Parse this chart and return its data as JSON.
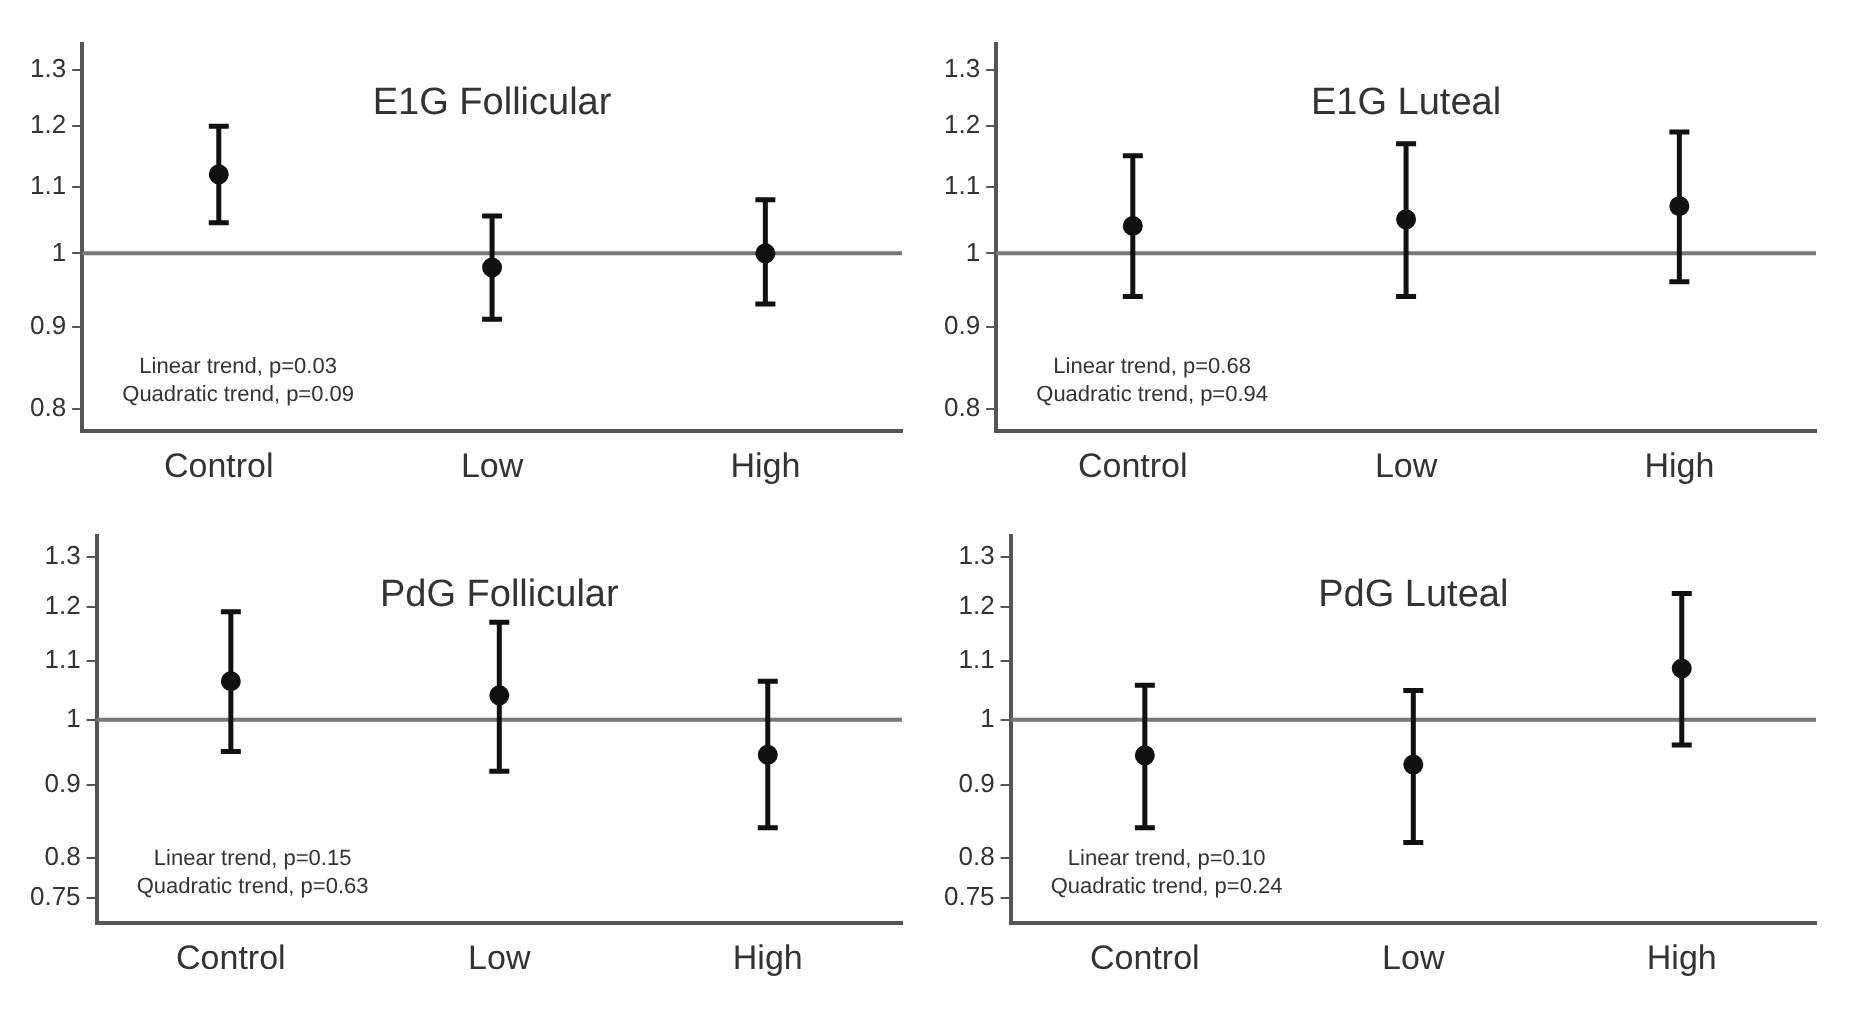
{
  "chart_data": [
    {
      "type": "scatter",
      "title": "E1G Follicular",
      "categories": [
        "Control",
        "Low",
        "High"
      ],
      "values": [
        1.12,
        0.98,
        1.0
      ],
      "errors": [
        [
          1.045,
          1.2
        ],
        [
          0.91,
          1.055
        ],
        [
          0.93,
          1.08
        ]
      ],
      "color": "#111111",
      "marker": "circle",
      "log": "y",
      "ylim": [
        0.775,
        1.35
      ],
      "yticks": [
        0.8,
        0.9,
        1,
        1.1,
        1.2,
        1.3
      ],
      "ref_lines": [
        {
          "axis": "y",
          "value": 1,
          "color": "#777777"
        }
      ],
      "annotations": [
        "Linear trend, p=0.03",
        "Quadratic trend, p=0.09"
      ]
    },
    {
      "type": "scatter",
      "title": "E1G Luteal",
      "categories": [
        "Control",
        "Low",
        "High"
      ],
      "values": [
        1.04,
        1.05,
        1.07
      ],
      "errors": [
        [
          0.94,
          1.15
        ],
        [
          0.94,
          1.17
        ],
        [
          0.96,
          1.19
        ]
      ],
      "color": "#111111",
      "marker": "circle",
      "log": "y",
      "ylim": [
        0.775,
        1.35
      ],
      "yticks": [
        0.8,
        0.9,
        1,
        1.1,
        1.2,
        1.3
      ],
      "ref_lines": [
        {
          "axis": "y",
          "value": 1,
          "color": "#777777"
        }
      ],
      "annotations": [
        "Linear trend, p=0.68",
        "Quadratic trend, p=0.94"
      ]
    },
    {
      "type": "scatter",
      "title": "PdG Follicular",
      "categories": [
        "Control",
        "Low",
        "High"
      ],
      "values": [
        1.064,
        1.04,
        0.945
      ],
      "errors": [
        [
          0.95,
          1.19
        ],
        [
          0.92,
          1.17
        ],
        [
          0.84,
          1.064
        ]
      ],
      "color": "#111111",
      "marker": "circle",
      "log": "y",
      "ylim": [
        0.72,
        1.345
      ],
      "yticks": [
        0.75,
        0.8,
        0.9,
        1,
        1.1,
        1.2,
        1.3
      ],
      "ref_lines": [
        {
          "axis": "y",
          "value": 1,
          "color": "#777777"
        }
      ],
      "annotations": [
        "Linear trend, p=0.15",
        "Quadratic trend, p=0.63"
      ]
    },
    {
      "type": "scatter",
      "title": "PdG Luteal",
      "categories": [
        "Control",
        "Low",
        "High"
      ],
      "values": [
        0.944,
        0.93,
        1.086
      ],
      "errors": [
        [
          0.84,
          1.057
        ],
        [
          0.82,
          1.048
        ],
        [
          0.96,
          1.226
        ]
      ],
      "color": "#111111",
      "marker": "circle",
      "log": "y",
      "ylim": [
        0.72,
        1.345
      ],
      "yticks": [
        0.75,
        0.8,
        0.9,
        1,
        1.1,
        1.2,
        1.3
      ],
      "ref_lines": [
        {
          "axis": "y",
          "value": 1,
          "color": "#777777"
        }
      ],
      "annotations": [
        "Linear trend, p=0.10",
        "Quadratic trend, p=0.24"
      ]
    }
  ]
}
